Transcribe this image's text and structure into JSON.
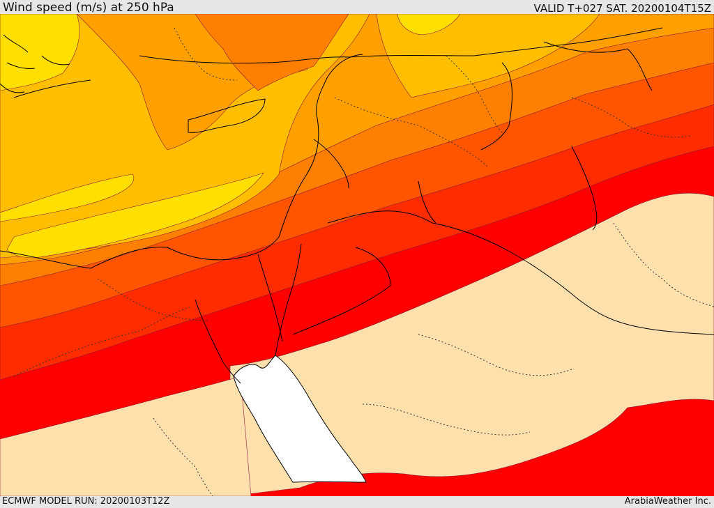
{
  "header": {
    "title": "Wind speed (m/s) at 250 hPa",
    "valid": "VALID T+027 SAT. 20200104T15Z"
  },
  "footer": {
    "model_run": "ECMWF MODEL RUN: 20200103T12Z",
    "credit": "ArabiaWeather Inc."
  },
  "colors": {
    "band_1": "#ffdf00",
    "band_2": "#ffbf00",
    "band_3": "#ff9f00",
    "band_4": "#ff7f00",
    "band_5": "#ff5a00",
    "band_6": "#ff3000",
    "band_7": "#ff0000",
    "calm_land": "#fde0ab",
    "sea": "#ffffff"
  }
}
